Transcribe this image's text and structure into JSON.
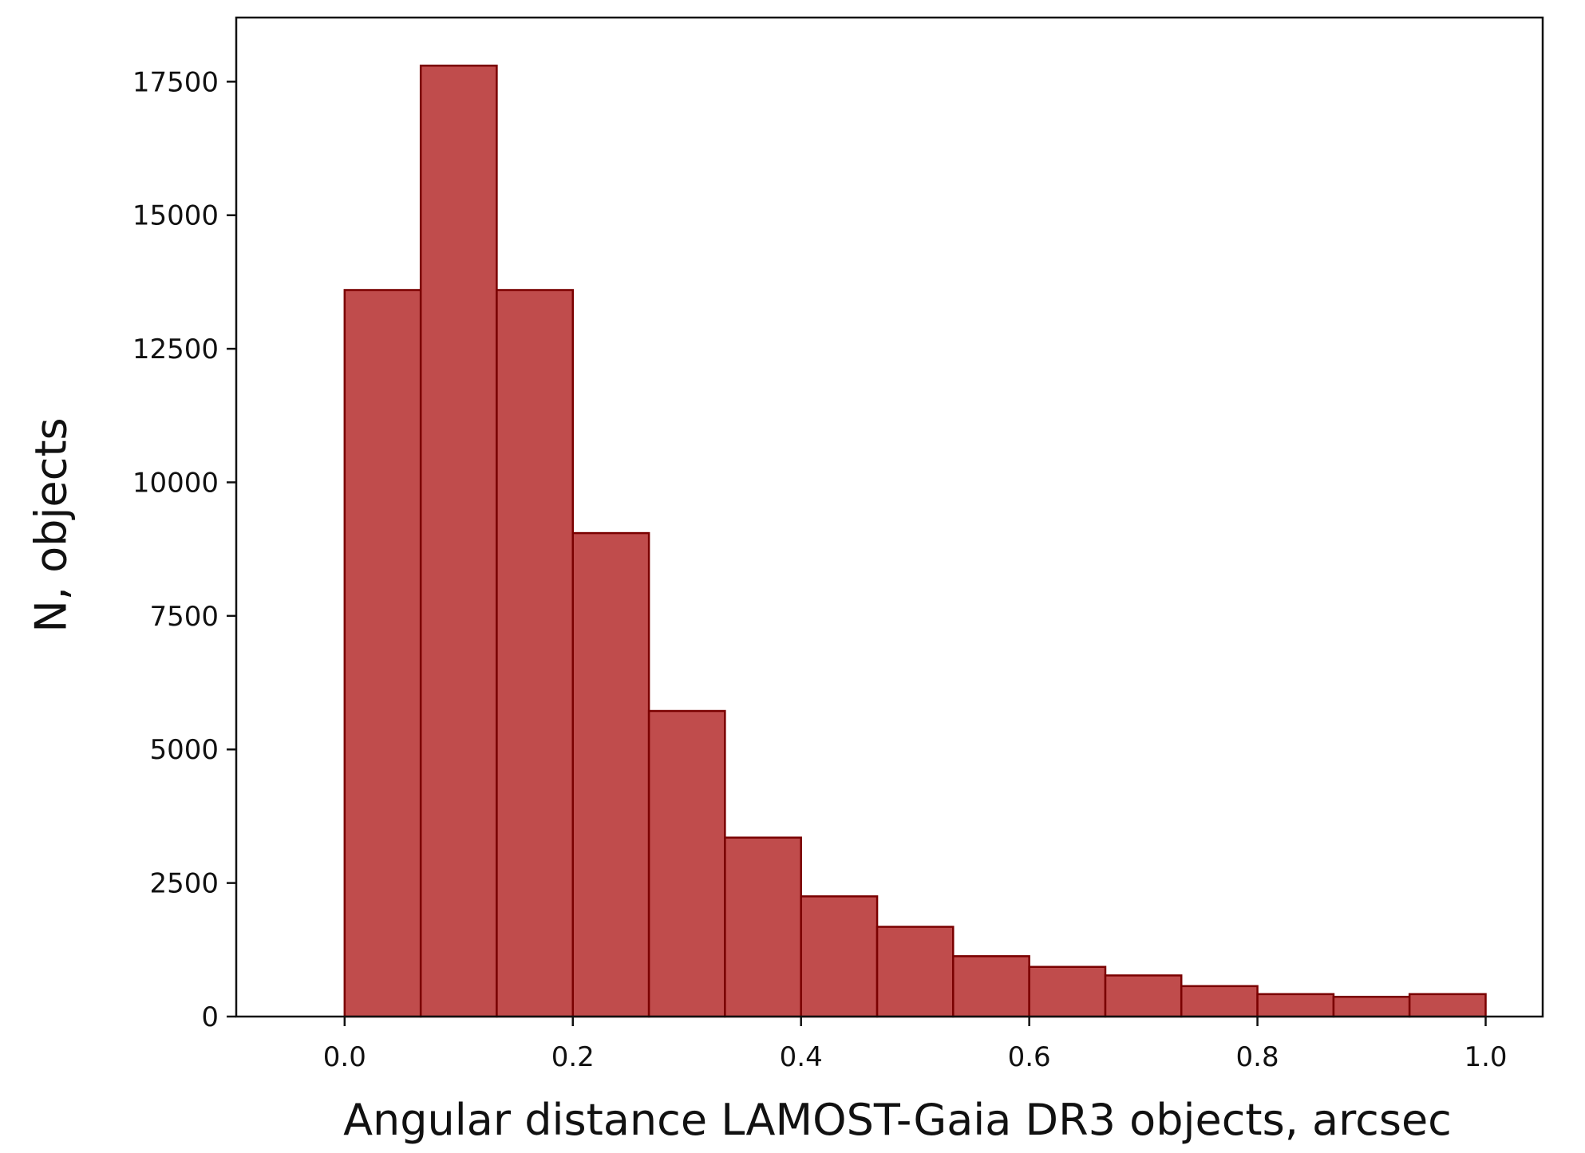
{
  "chart_data": {
    "type": "bar",
    "title": "",
    "xlabel": "Angular distance LAMOST-Gaia DR3 objects, arcsec",
    "ylabel": "N, objects",
    "bin_edges": [
      0.0,
      0.0667,
      0.1333,
      0.2,
      0.2667,
      0.3333,
      0.4,
      0.4667,
      0.5333,
      0.6,
      0.6667,
      0.7333,
      0.8,
      0.8667,
      0.9333,
      1.0
    ],
    "values": [
      13600,
      17800,
      13600,
      9050,
      5720,
      3350,
      2250,
      1680,
      1130,
      930,
      770,
      570,
      420,
      370,
      420
    ],
    "xlim": [
      -0.095,
      1.05
    ],
    "ylim": [
      0,
      18700
    ],
    "xticks": [
      0.0,
      0.2,
      0.4,
      0.6,
      0.8,
      1.0
    ],
    "xtick_labels": [
      "0.0",
      "0.2",
      "0.4",
      "0.6",
      "0.8",
      "1.0"
    ],
    "yticks": [
      0,
      2500,
      5000,
      7500,
      10000,
      12500,
      15000,
      17500
    ],
    "ytick_labels": [
      "0",
      "2500",
      "5000",
      "7500",
      "10000",
      "12500",
      "15000",
      "17500"
    ],
    "grid": false,
    "legend": "none",
    "colors": {
      "bar_fill": "#c04c4c",
      "bar_edge": "#7a0000",
      "axes": "#111111"
    }
  }
}
